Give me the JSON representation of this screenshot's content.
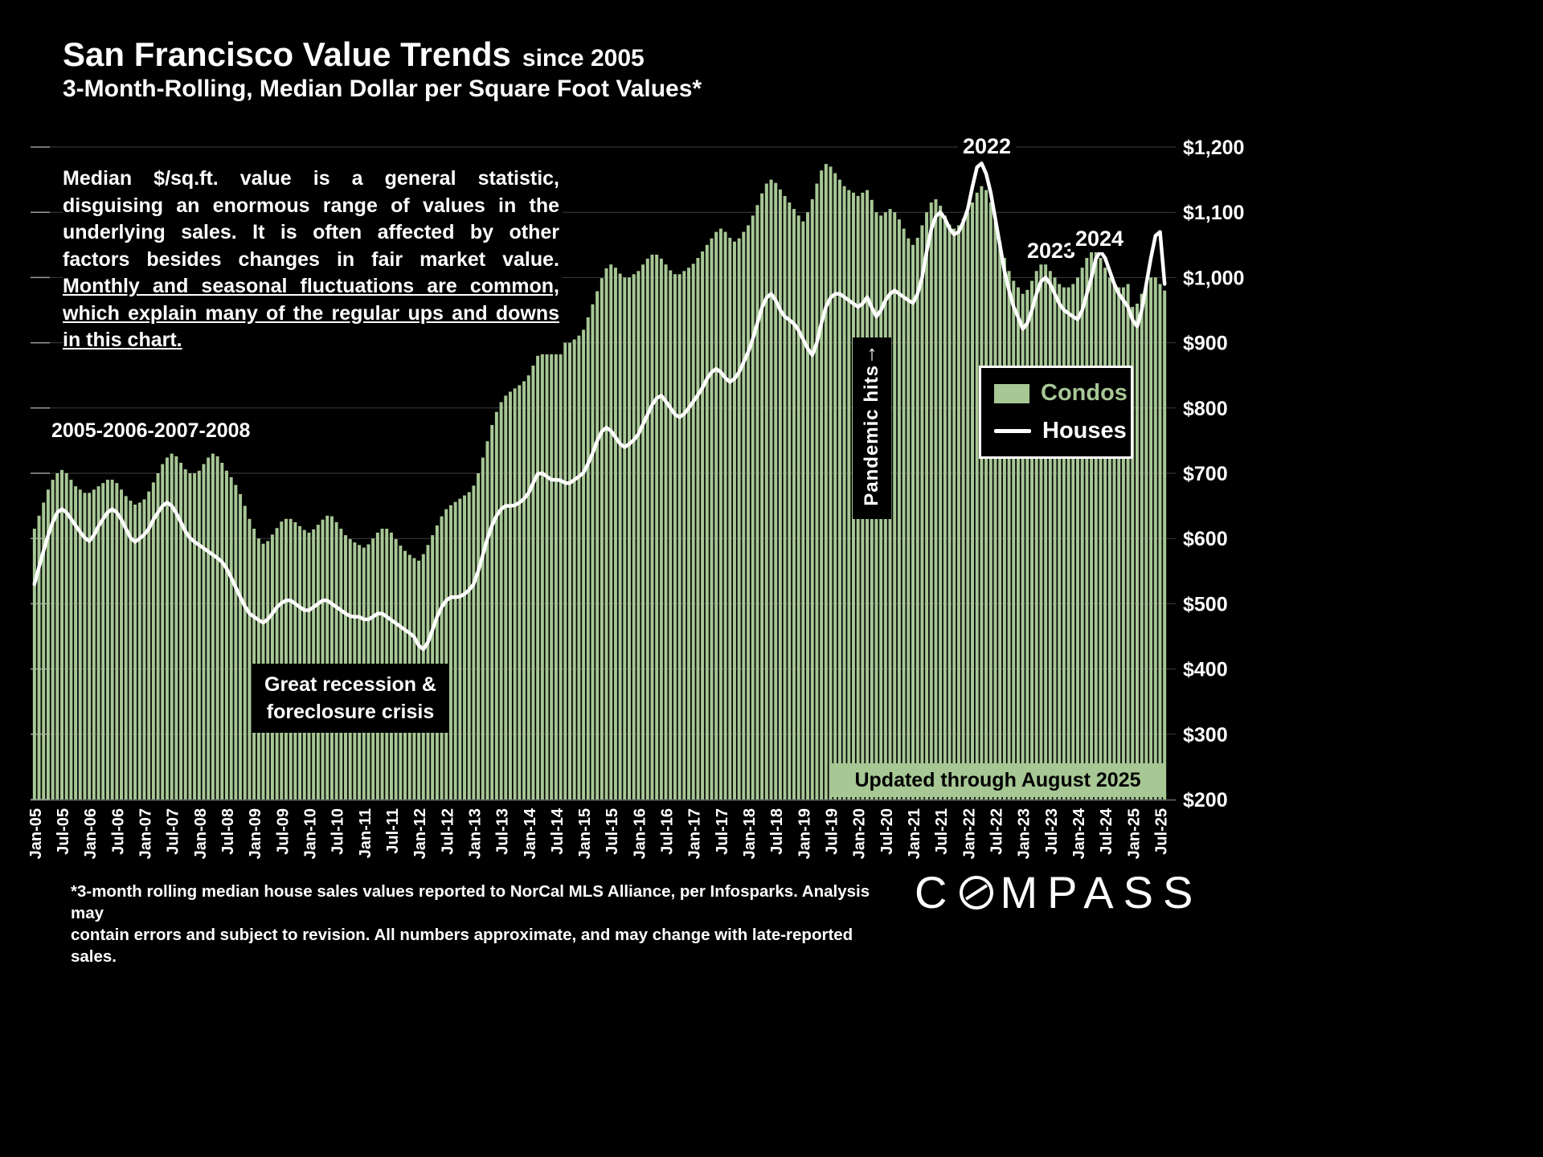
{
  "title": {
    "main": "San Francisco Value Trends",
    "suffix": "since 2005",
    "subtitle": "3-Month-Rolling, Median Dollar per Square Foot Values*"
  },
  "note": {
    "text": "Median $/sq.ft. value is a general statistic, disguising an enormous range of values in the underlying sales. It is often affected by other factors besides changes in fair market value. ",
    "underlined": "Monthly and seasonal fluctuations are common, which explain many of the regular ups and downs in this chart."
  },
  "annotations": {
    "early_years": "2005-2006-2007-2008",
    "recession_line1": "Great recession &",
    "recession_line2": "foreclosure crisis",
    "pandemic": "Pandemic hits",
    "pandemic_arrow": "↑",
    "y2022": "2022",
    "y2023": "2023",
    "y2024": "2024",
    "updated": "Updated through August 2025"
  },
  "legend": {
    "condos": "Condos",
    "houses": "Houses"
  },
  "footnote": {
    "line1": "*3-month rolling median house sales values reported to NorCal MLS Alliance, per Infosparks. Analysis may",
    "line2": "contain errors and subject to revision. All numbers approximate, and may change with late-reported sales."
  },
  "logo": {
    "part1": "C",
    "part2": "MPASS"
  },
  "colors": {
    "bar": "#a7c795",
    "line": "#ffffff",
    "background": "#000000"
  },
  "chart_data": {
    "type": "bar",
    "title": "San Francisco Value Trends since 2005 — 3-Month-Rolling, Median Dollar per Square Foot Values",
    "x_unit": "month",
    "x_start": "Jan-05",
    "x_end": "Aug-25",
    "x_tick_labels": [
      "Jan-05",
      "Jul-05",
      "Jan-06",
      "Jul-06",
      "Jan-07",
      "Jul-07",
      "Jan-08",
      "Jul-08",
      "Jan-09",
      "Jul-09",
      "Jan-10",
      "Jul-10",
      "Jan-11",
      "Jul-11",
      "Jan-12",
      "Jul-12",
      "Jan-13",
      "Jul-13",
      "Jan-14",
      "Jul-14",
      "Jan-15",
      "Jul-15",
      "Jan-16",
      "Jul-16",
      "Jan-17",
      "Jul-17",
      "Jan-18",
      "Jul-18",
      "Jan-19",
      "Jul-19",
      "Jan-20",
      "Jul-20",
      "Jan-21",
      "Jul-21",
      "Jan-22",
      "Jul-22",
      "Jan-23",
      "Jul-23",
      "Jan-24",
      "Jul-24",
      "Jan-25",
      "Jul-25"
    ],
    "ylim": [
      200,
      1200
    ],
    "y_tick_step": 100,
    "y_ticks": [
      "$200",
      "$300",
      "$400",
      "$500",
      "$600",
      "$700",
      "$800",
      "$900",
      "$1,000",
      "$1,100",
      "$1,200"
    ],
    "grid": true,
    "legend_position": "right",
    "series": [
      {
        "name": "Condos",
        "type": "bar",
        "color": "#a7c795",
        "values": [
          615,
          635,
          655,
          675,
          690,
          700,
          705,
          700,
          690,
          680,
          675,
          670,
          670,
          675,
          680,
          685,
          690,
          690,
          685,
          675,
          665,
          658,
          652,
          655,
          660,
          672,
          686,
          700,
          714,
          724,
          730,
          726,
          716,
          706,
          700,
          700,
          704,
          714,
          724,
          730,
          726,
          716,
          704,
          694,
          682,
          668,
          650,
          630,
          615,
          600,
          592,
          596,
          606,
          616,
          626,
          630,
          630,
          625,
          619,
          613,
          609,
          614,
          621,
          629,
          635,
          634,
          625,
          615,
          605,
          599,
          594,
          590,
          586,
          591,
          600,
          609,
          615,
          615,
          609,
          599,
          589,
          581,
          575,
          570,
          566,
          576,
          590,
          605,
          620,
          634,
          645,
          651,
          656,
          661,
          666,
          671,
          681,
          700,
          724,
          749,
          774,
          794,
          809,
          819,
          825,
          830,
          835,
          841,
          850,
          865,
          880,
          894,
          904,
          910,
          910,
          905,
          900,
          900,
          905,
          911,
          920,
          939,
          959,
          979,
          999,
          1014,
          1020,
          1015,
          1006,
          1000,
          1000,
          1005,
          1010,
          1020,
          1029,
          1035,
          1035,
          1029,
          1020,
          1011,
          1005,
          1005,
          1010,
          1015,
          1021,
          1030,
          1040,
          1050,
          1060,
          1070,
          1075,
          1070,
          1061,
          1055,
          1060,
          1070,
          1080,
          1095,
          1111,
          1129,
          1144,
          1150,
          1145,
          1135,
          1125,
          1115,
          1105,
          1095,
          1086,
          1100,
          1120,
          1144,
          1164,
          1174,
          1170,
          1160,
          1150,
          1140,
          1134,
          1130,
          1125,
          1130,
          1134,
          1119,
          1100,
          1095,
          1100,
          1105,
          1100,
          1089,
          1075,
          1060,
          1050,
          1061,
          1080,
          1100,
          1115,
          1120,
          1110,
          1095,
          1081,
          1075,
          1080,
          1090,
          1100,
          1115,
          1130,
          1140,
          1134,
          1115,
          1085,
          1055,
          1030,
          1010,
          995,
          985,
          975,
          981,
          995,
          1010,
          1020,
          1020,
          1010,
          1000,
          990,
          985,
          985,
          990,
          1000,
          1015,
          1030,
          1040,
          1040,
          1030,
          1015,
          1000,
          990,
          985,
          985,
          990,
          955,
          960,
          975,
          990,
          1000,
          1000,
          990,
          980
        ]
      },
      {
        "name": "Houses",
        "type": "line",
        "color": "#ffffff",
        "values": [
          530,
          556,
          581,
          605,
          625,
          640,
          645,
          640,
          630,
          620,
          610,
          601,
          596,
          605,
          619,
          630,
          640,
          645,
          640,
          629,
          615,
          601,
          595,
          600,
          606,
          615,
          629,
          640,
          650,
          655,
          650,
          639,
          625,
          611,
          601,
          595,
          590,
          585,
          580,
          575,
          570,
          564,
          554,
          540,
          525,
          510,
          496,
          485,
          480,
          475,
          471,
          476,
          485,
          495,
          501,
          505,
          505,
          500,
          495,
          490,
          490,
          495,
          500,
          505,
          505,
          500,
          495,
          490,
          485,
          481,
          480,
          480,
          476,
          476,
          480,
          485,
          485,
          480,
          475,
          470,
          465,
          460,
          455,
          449,
          436,
          430,
          441,
          460,
          480,
          495,
          505,
          510,
          510,
          511,
          515,
          521,
          530,
          550,
          575,
          600,
          620,
          635,
          645,
          650,
          650,
          651,
          655,
          661,
          670,
          685,
          699,
          700,
          695,
          690,
          690,
          689,
          685,
          685,
          690,
          695,
          701,
          715,
          731,
          750,
          764,
          770,
          765,
          755,
          745,
          740,
          745,
          751,
          760,
          775,
          790,
          805,
          815,
          819,
          810,
          800,
          790,
          786,
          791,
          800,
          810,
          820,
          831,
          845,
          855,
          860,
          855,
          846,
          840,
          845,
          855,
          870,
          886,
          906,
          930,
          954,
          969,
          975,
          965,
          950,
          940,
          935,
          929,
          919,
          905,
          891,
          881,
          900,
          930,
          955,
          969,
          975,
          975,
          970,
          965,
          960,
          955,
          960,
          970,
          954,
          940,
          950,
          965,
          975,
          980,
          975,
          970,
          965,
          961,
          975,
          1000,
          1040,
          1074,
          1094,
          1100,
          1090,
          1075,
          1066,
          1070,
          1085,
          1105,
          1139,
          1169,
          1175,
          1159,
          1130,
          1090,
          1050,
          1010,
          980,
          955,
          939,
          921,
          930,
          950,
          975,
          994,
          1000,
          990,
          975,
          960,
          950,
          945,
          940,
          936,
          950,
          975,
          1000,
          1029,
          1040,
          1030,
          1010,
          990,
          975,
          965,
          955,
          935,
          925,
          950,
          990,
          1030,
          1064,
          1070,
          990
        ]
      }
    ]
  }
}
